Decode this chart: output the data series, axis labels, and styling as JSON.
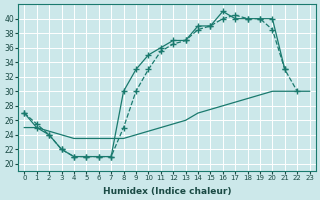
{
  "xlabel": "Humidex (Indice chaleur)",
  "bg_color": "#cce8ea",
  "grid_color": "#ffffff",
  "line_color": "#1a7a6e",
  "xlim": [
    -0.5,
    23.5
  ],
  "ylim": [
    19,
    42
  ],
  "yticks": [
    20,
    22,
    24,
    26,
    28,
    30,
    32,
    34,
    36,
    38,
    40
  ],
  "xticks": [
    0,
    1,
    2,
    3,
    4,
    5,
    6,
    7,
    8,
    9,
    10,
    11,
    12,
    13,
    14,
    15,
    16,
    17,
    18,
    19,
    20,
    21,
    22,
    23
  ],
  "line1_x": [
    0,
    1,
    2,
    3,
    4,
    5,
    6,
    7,
    8,
    9,
    10,
    11,
    12,
    13,
    14,
    15,
    16,
    17,
    18,
    19,
    20,
    21
  ],
  "line1_y": [
    27,
    25,
    24,
    22,
    21,
    21,
    21,
    21,
    30,
    33,
    35,
    36,
    37,
    37,
    39,
    39,
    41,
    40,
    40,
    40,
    40,
    33
  ],
  "line2_x": [
    0,
    1,
    2,
    3,
    4,
    5,
    6,
    7,
    8,
    9,
    10,
    11,
    12,
    13,
    14,
    15,
    16,
    17,
    18,
    19,
    20,
    21,
    22,
    23
  ],
  "line2_y": [
    27,
    25.5,
    24,
    22,
    21,
    21,
    21,
    21,
    25,
    30,
    33,
    35.5,
    36.5,
    37,
    38.5,
    39,
    40,
    40.5,
    40,
    40,
    38.5,
    33,
    30,
    null
  ],
  "line3_x": [
    0,
    1,
    2,
    3,
    4,
    5,
    6,
    7,
    8,
    9,
    10,
    11,
    12,
    13,
    14,
    15,
    16,
    17,
    18,
    19,
    20,
    21,
    22,
    23
  ],
  "line3_y": [
    25,
    25,
    24.5,
    24,
    23.5,
    23.5,
    23.5,
    23.5,
    23.5,
    24,
    24.5,
    25,
    25.5,
    26,
    27,
    27.5,
    28,
    28.5,
    29,
    29.5,
    30,
    30,
    30,
    30
  ]
}
